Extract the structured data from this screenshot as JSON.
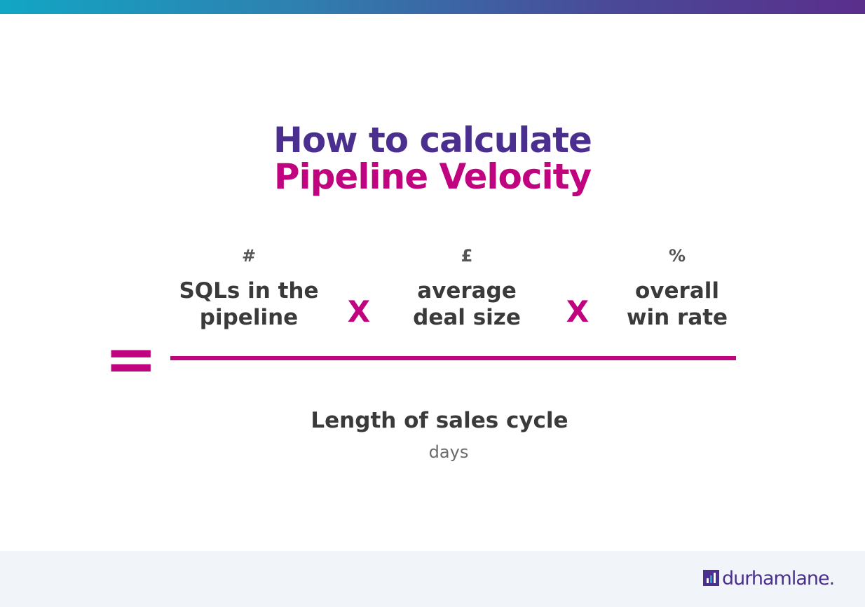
{
  "header": {
    "title_lines": [
      "How to calculate",
      "Pipeline Velocity"
    ]
  },
  "formula": {
    "numerator": [
      {
        "unit": "#",
        "label_lines": [
          "SQLs in the",
          "pipeline"
        ]
      },
      {
        "unit": "£",
        "label_lines": [
          "average",
          "deal size"
        ]
      },
      {
        "unit": "%",
        "label_lines": [
          "overall",
          "win rate"
        ]
      }
    ],
    "operators": [
      "X",
      "X"
    ],
    "equals": "=",
    "denominator": {
      "label": "Length of sales cycle",
      "unit": "days"
    }
  },
  "footer": {
    "logo": "durhamlane."
  }
}
